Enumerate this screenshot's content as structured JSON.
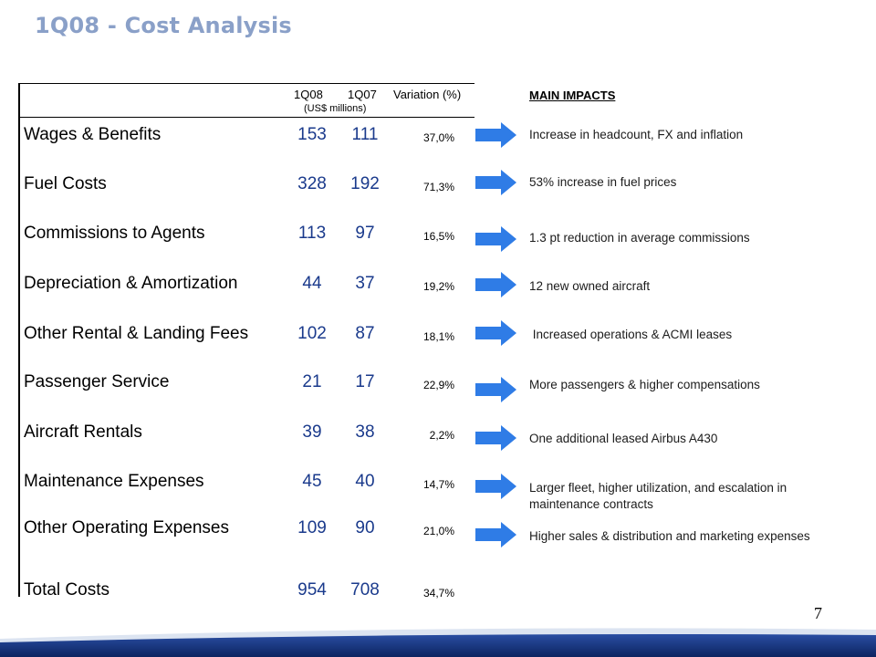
{
  "title": "1Q08 - Cost Analysis",
  "table": {
    "col_1q08": "1Q08",
    "col_1q07": "1Q07",
    "col_variation": "Variation (%)",
    "units": "(US$ millions)",
    "rows": [
      {
        "label": "Wages & Benefits",
        "q08": "153",
        "q07": "111",
        "variation": "37,0%"
      },
      {
        "label": "Fuel Costs",
        "q08": "328",
        "q07": "192",
        "variation": "71,3%"
      },
      {
        "label": "Commissions to Agents",
        "q08": "113",
        "q07": "97",
        "variation": "16,5%"
      },
      {
        "label": "Depreciation & Amortization",
        "q08": "44",
        "q07": "37",
        "variation": "19,2%"
      },
      {
        "label": "Other Rental & Landing Fees",
        "q08": "102",
        "q07": "87",
        "variation": "18,1%"
      },
      {
        "label": "Passenger Service",
        "q08": "21",
        "q07": "17",
        "variation": "22,9%"
      },
      {
        "label": "Aircraft Rentals",
        "q08": "39",
        "q07": "38",
        "variation": "2,2%"
      },
      {
        "label": "Maintenance Expenses",
        "q08": "45",
        "q07": "40",
        "variation": "14,7%"
      },
      {
        "label": "Other Operating Expenses",
        "q08": "109",
        "q07": "90",
        "variation": "21,0%"
      }
    ],
    "total": {
      "label": "Total Costs",
      "q08": "954",
      "q07": "708",
      "variation": "34,7%"
    }
  },
  "impacts": {
    "title": "MAIN IMPACTS",
    "items": [
      "Increase in headcount, FX and inflation",
      "53% increase in fuel prices",
      "1.3 pt reduction in average commissions",
      "12 new owned aircraft",
      " Increased operations & ACMI leases",
      "More passengers & higher compensations",
      "One additional leased Airbus A430",
      "Larger fleet, higher utilization, and escalation in maintenance contracts",
      "Higher sales & distribution and marketing expenses"
    ]
  },
  "page_number": "7",
  "colors": {
    "title": "#8aa0c8",
    "numbers": "#1a3a8c",
    "arrow": "#2f7ce6",
    "band": "#1f3f8c"
  },
  "icons": {
    "arrow": "arrow-right-icon"
  }
}
